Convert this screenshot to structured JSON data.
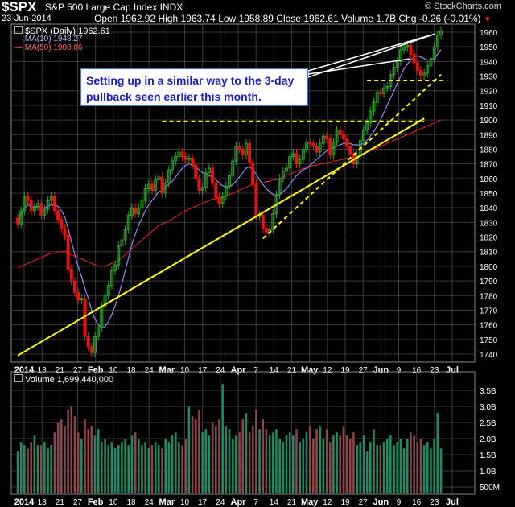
{
  "header": {
    "symbol": "$SPX",
    "name": "S&P 500 Large Cap Index",
    "exchange": "INDX",
    "brand": "© StockCharts.com",
    "date": "23-Jun-2014",
    "open_label": "Open",
    "open": "1962.92",
    "high_label": "High",
    "high": "1963.74",
    "low_label": "Low",
    "low": "1958.89",
    "close_label": "Close",
    "close": "1962.61",
    "volume_label": "Volume",
    "volume": "1.7B",
    "chg_label": "Chg",
    "chg": "-0.26 (-0.01%)"
  },
  "legend": {
    "price": "$SPX (Daily) 1962.61",
    "ma10": "MA(10) 1948.27",
    "ma50": "MA(50) 1900.06",
    "volume": "Volume 1,699,440,000"
  },
  "annotation": "Setting up in a similar way to the 3-day pullback seen earlier this month.",
  "colors": {
    "up": "#2aa52a",
    "down": "#ee1111",
    "ma10": "#8a8cf5",
    "ma50": "#cc2222",
    "trend": "#ffff00",
    "vol_up": "#218a65",
    "vol_down": "#8d4545",
    "grid": "#3a3a3a"
  },
  "chart_data": {
    "type": "candlestick",
    "ylim": [
      1730,
      1970
    ],
    "y_ticks": [
      1740,
      1750,
      1760,
      1770,
      1780,
      1790,
      1800,
      1810,
      1820,
      1830,
      1840,
      1850,
      1860,
      1870,
      1880,
      1890,
      1900,
      1910,
      1920,
      1930,
      1940,
      1950,
      1960
    ],
    "x_tick_labels": [
      "2014",
      "13",
      "21",
      "27",
      "Feb",
      "10",
      "18",
      "24",
      "Mar",
      "10",
      "17",
      "24",
      "Apr",
      "7",
      "14",
      "21",
      "May",
      "12",
      "19",
      "27",
      "Jun",
      "9",
      "16",
      "23",
      "Jul"
    ],
    "x_tick_bold": [
      "2014",
      "Feb",
      "Mar",
      "Apr",
      "May",
      "Jun",
      "Jul"
    ],
    "price_close": [
      1829,
      1838,
      1848,
      1845,
      1838,
      1841,
      1843,
      1835,
      1839,
      1845,
      1848,
      1838,
      1832,
      1826,
      1821,
      1798,
      1790,
      1782,
      1777,
      1778,
      1752,
      1745,
      1741,
      1752,
      1758,
      1773,
      1780,
      1787,
      1797,
      1801,
      1814,
      1818,
      1825,
      1835,
      1840,
      1836,
      1840,
      1845,
      1853,
      1856,
      1852,
      1859,
      1861,
      1850,
      1857,
      1866,
      1872,
      1875,
      1878,
      1875,
      1873,
      1874,
      1869,
      1860,
      1852,
      1854,
      1864,
      1867,
      1857,
      1847,
      1843,
      1848,
      1855,
      1862,
      1872,
      1882,
      1880,
      1876,
      1884,
      1871,
      1856,
      1834,
      1835,
      1826,
      1823,
      1825,
      1836,
      1849,
      1860,
      1865,
      1867,
      1875,
      1877,
      1870,
      1873,
      1880,
      1885,
      1884,
      1882,
      1878,
      1884,
      1889,
      1887,
      1876,
      1885,
      1893,
      1890,
      1887,
      1882,
      1877,
      1870,
      1876,
      1886,
      1893,
      1898,
      1906,
      1912,
      1919,
      1918,
      1922,
      1923,
      1931,
      1936,
      1940,
      1948,
      1950,
      1951,
      1945,
      1939,
      1934,
      1930,
      1932,
      1937,
      1942,
      1950,
      1958,
      1961
    ],
    "ma10": [
      1829,
      1836,
      1840,
      1842,
      1841,
      1840,
      1841,
      1840,
      1840,
      1841,
      1842,
      1842,
      1841,
      1838,
      1834,
      1826,
      1817,
      1808,
      1800,
      1793,
      1785,
      1778,
      1770,
      1764,
      1760,
      1758,
      1759,
      1762,
      1767,
      1773,
      1780,
      1788,
      1797,
      1806,
      1815,
      1822,
      1828,
      1833,
      1838,
      1842,
      1845,
      1848,
      1851,
      1852,
      1854,
      1856,
      1858,
      1861,
      1864,
      1867,
      1869,
      1870,
      1869,
      1868,
      1866,
      1864,
      1863,
      1862,
      1861,
      1859,
      1857,
      1855,
      1854,
      1854,
      1856,
      1858,
      1861,
      1864,
      1867,
      1868,
      1866,
      1863,
      1859,
      1856,
      1853,
      1851,
      1849,
      1848,
      1849,
      1851,
      1853,
      1856,
      1859,
      1862,
      1864,
      1866,
      1867,
      1869,
      1871,
      1873,
      1875,
      1877,
      1879,
      1880,
      1881,
      1882,
      1883,
      1884,
      1884,
      1884,
      1883,
      1883,
      1883,
      1884,
      1886,
      1889,
      1892,
      1896,
      1900,
      1905,
      1910,
      1915,
      1920,
      1925,
      1930,
      1935,
      1938,
      1941,
      1943,
      1944,
      1943,
      1942,
      1941,
      1941,
      1942,
      1945,
      1948
    ],
    "ma50": [
      1799,
      1800,
      1801,
      1802,
      1803,
      1804,
      1805,
      1806,
      1807,
      1808,
      1809,
      1809,
      1810,
      1810,
      1810,
      1809,
      1808,
      1807,
      1806,
      1805,
      1804,
      1803,
      1802,
      1801,
      1800,
      1800,
      1800,
      1801,
      1802,
      1803,
      1804,
      1806,
      1808,
      1810,
      1812,
      1814,
      1816,
      1818,
      1820,
      1822,
      1824,
      1826,
      1828,
      1829,
      1830,
      1831,
      1832,
      1834,
      1835,
      1837,
      1838,
      1839,
      1840,
      1841,
      1842,
      1843,
      1844,
      1845,
      1846,
      1846,
      1847,
      1847,
      1848,
      1849,
      1850,
      1851,
      1852,
      1853,
      1854,
      1855,
      1856,
      1856,
      1857,
      1857,
      1858,
      1858,
      1859,
      1859,
      1860,
      1861,
      1862,
      1863,
      1864,
      1865,
      1866,
      1867,
      1867,
      1868,
      1869,
      1869,
      1870,
      1870,
      1871,
      1871,
      1872,
      1872,
      1873,
      1873,
      1874,
      1874,
      1875,
      1875,
      1876,
      1877,
      1878,
      1879,
      1880,
      1881,
      1882,
      1883,
      1884,
      1885,
      1886,
      1887,
      1888,
      1889,
      1890,
      1891,
      1892,
      1893,
      1894,
      1895,
      1896,
      1897,
      1898,
      1899,
      1900
    ],
    "volume": [
      1.6,
      1.9,
      1.8,
      1.7,
      1.9,
      2.1,
      1.8,
      1.8,
      1.9,
      1.7,
      1.8,
      2.2,
      2.5,
      2.6,
      2.4,
      2.9,
      3.0,
      2.7,
      2.2,
      2.0,
      2.6,
      2.3,
      2.4,
      2.1,
      2.3,
      1.9,
      2.0,
      1.8,
      1.9,
      1.7,
      1.8,
      1.9,
      2.0,
      1.8,
      2.1,
      2.2,
      2.0,
      1.8,
      1.9,
      1.7,
      1.8,
      1.9,
      1.8,
      1.7,
      2.0,
      1.9,
      2.1,
      2.2,
      1.9,
      1.8,
      2.0,
      3.0,
      2.7,
      2.6,
      2.9,
      2.2,
      2.3,
      2.1,
      2.5,
      2.4,
      2.6,
      3.7,
      2.4,
      2.3,
      2.0,
      2.1,
      2.2,
      2.6,
      2.8,
      2.2,
      2.4,
      2.9,
      2.3,
      2.6,
      2.3,
      2.1,
      2.2,
      2.3,
      2.0,
      1.9,
      2.1,
      2.2,
      2.1,
      2.3,
      1.9,
      2.0,
      2.2,
      2.4,
      2.0,
      2.3,
      2.4,
      2.0,
      2.3,
      1.9,
      2.1,
      2.2,
      2.1,
      2.4,
      2.1,
      2.0,
      2.2,
      1.8,
      1.9,
      2.1,
      1.6,
      1.9,
      2.3,
      1.8,
      1.8,
      1.9,
      2.0,
      2.1,
      1.8,
      1.9,
      2.0,
      1.7,
      2.0,
      2.2,
      2.1,
      1.9,
      2.0,
      1.8,
      1.9,
      1.7,
      2.0,
      2.8,
      1.7
    ],
    "volume_ylim": [
      0.3,
      3.8
    ],
    "volume_ticks": [
      {
        "v": 3.5,
        "label": "3.5B"
      },
      {
        "v": 3.0,
        "label": "3.0B"
      },
      {
        "v": 2.5,
        "label": "2.5B"
      },
      {
        "v": 2.0,
        "label": "2.0B"
      },
      {
        "v": 1.5,
        "label": "1.5B"
      },
      {
        "v": 1.0,
        "label": "1.0B"
      },
      {
        "v": 0.5,
        "label": "500M"
      }
    ],
    "trendlines": [
      {
        "style": "solid",
        "from": [
          0,
          1739
        ],
        "to": [
          121,
          1901
        ]
      },
      {
        "style": "dashed",
        "from": [
          73,
          1819
        ],
        "to": [
          126,
          1931
        ]
      },
      {
        "style": "dashed-horizontal",
        "from": [
          43,
          1899
        ],
        "to": [
          121,
          1899
        ]
      },
      {
        "style": "dashed-horizontal",
        "from": [
          104,
          1927
        ],
        "to": [
          128,
          1927
        ]
      }
    ]
  }
}
